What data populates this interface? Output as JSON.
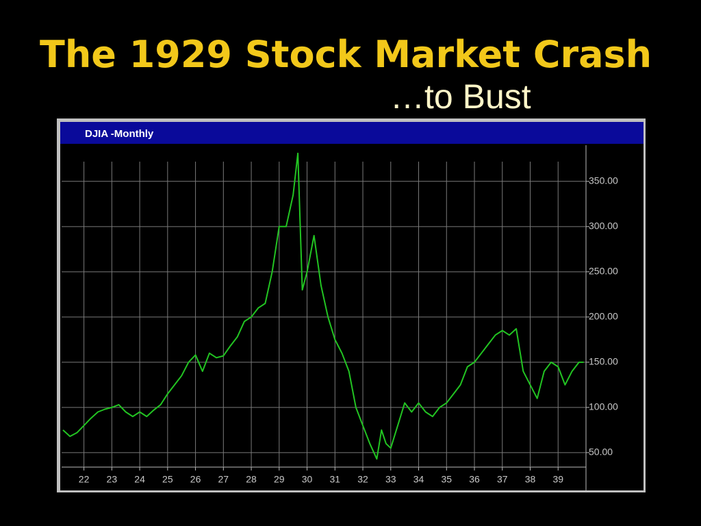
{
  "chart_data": {
    "type": "line",
    "title": "The 1929 Stock Market Crash",
    "subtitle": "…to Bust",
    "panel_title": "DJIA -Monthly",
    "color": "#22c422",
    "x": [
      21.25,
      21.5,
      21.75,
      22,
      22.25,
      22.5,
      22.75,
      23,
      23.25,
      23.5,
      23.75,
      24,
      24.25,
      24.5,
      24.75,
      25,
      25.25,
      25.5,
      25.75,
      26,
      26.25,
      26.5,
      26.75,
      27,
      27.25,
      27.5,
      27.75,
      28,
      28.25,
      28.5,
      28.75,
      29,
      29.25,
      29.5,
      29.67,
      29.83,
      30,
      30.25,
      30.5,
      30.75,
      31,
      31.25,
      31.5,
      31.75,
      32,
      32.25,
      32.5,
      32.67,
      32.83,
      33,
      33.25,
      33.5,
      33.75,
      34,
      34.25,
      34.5,
      34.75,
      35,
      35.25,
      35.5,
      35.75,
      36,
      36.25,
      36.5,
      36.75,
      37,
      37.25,
      37.5,
      37.75,
      38,
      38.25,
      38.5,
      38.75,
      39,
      39.25,
      39.5,
      39.75,
      39.92
    ],
    "values": [
      75,
      68,
      72,
      80,
      88,
      95,
      98,
      100,
      103,
      95,
      90,
      95,
      90,
      97,
      103,
      115,
      125,
      135,
      150,
      158,
      140,
      160,
      155,
      157,
      168,
      178,
      195,
      200,
      210,
      215,
      250,
      300,
      300,
      335,
      381,
      230,
      250,
      290,
      235,
      200,
      175,
      160,
      140,
      100,
      80,
      60,
      43,
      75,
      60,
      55,
      80,
      105,
      95,
      105,
      95,
      90,
      100,
      105,
      115,
      125,
      145,
      150,
      160,
      170,
      180,
      185,
      180,
      187,
      140,
      125,
      110,
      140,
      150,
      145,
      125,
      140,
      150,
      150
    ],
    "xlim": [
      21.2,
      40.0
    ],
    "xticks": [
      22,
      23,
      24,
      25,
      26,
      27,
      28,
      29,
      30,
      31,
      32,
      33,
      34,
      35,
      36,
      37,
      38,
      39
    ],
    "ylim": [
      34,
      390
    ],
    "yticks": [
      {
        "value": 50,
        "label": "50.00"
      },
      {
        "value": 100,
        "label": "100.00"
      },
      {
        "value": 150,
        "label": "150.00"
      },
      {
        "value": 200,
        "label": "200.00"
      },
      {
        "value": 250,
        "label": "250.00"
      },
      {
        "value": 300,
        "label": "300.00"
      },
      {
        "value": 350,
        "label": "350.00"
      }
    ],
    "grid": true
  }
}
